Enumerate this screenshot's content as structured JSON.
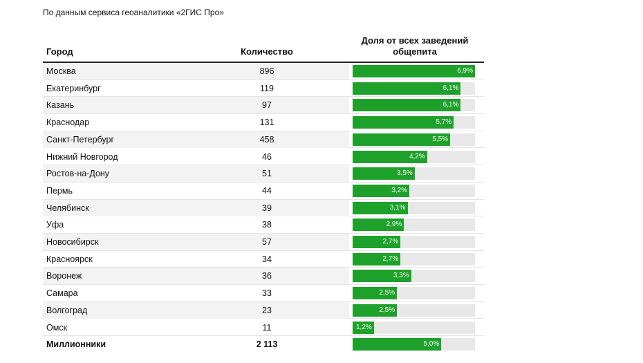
{
  "subtitle": "По данным сервиса геоаналитики «2ГИС Про»",
  "table": {
    "headers": [
      "Город",
      "Количество",
      "Доля от всех заведений общепита"
    ],
    "rows": [
      {
        "city": "Москва",
        "count": "896",
        "share": 6.9,
        "share_label": "6,9%"
      },
      {
        "city": "Екатеринбург",
        "count": "119",
        "share": 6.1,
        "share_label": "6,1%"
      },
      {
        "city": "Казань",
        "count": "97",
        "share": 6.1,
        "share_label": "6,1%"
      },
      {
        "city": "Краснодар",
        "count": "131",
        "share": 5.7,
        "share_label": "5,7%"
      },
      {
        "city": "Санкт-Петербург",
        "count": "458",
        "share": 5.5,
        "share_label": "5,5%"
      },
      {
        "city": "Нижний Новгород",
        "count": "46",
        "share": 4.2,
        "share_label": "4,2%"
      },
      {
        "city": "Ростов-на-Дону",
        "count": "51",
        "share": 3.5,
        "share_label": "3,5%"
      },
      {
        "city": "Пермь",
        "count": "44",
        "share": 3.2,
        "share_label": "3,2%"
      },
      {
        "city": "Челябинск",
        "count": "39",
        "share": 3.1,
        "share_label": "3,1%"
      },
      {
        "city": "Уфа",
        "count": "38",
        "share": 2.9,
        "share_label": "2,9%"
      },
      {
        "city": "Новосибирск",
        "count": "57",
        "share": 2.7,
        "share_label": "2,7%"
      },
      {
        "city": "Красноярск",
        "count": "34",
        "share": 2.7,
        "share_label": "2,7%"
      },
      {
        "city": "Воронеж",
        "count": "36",
        "share": 3.3,
        "share_label": "3,3%"
      },
      {
        "city": "Самара",
        "count": "33",
        "share": 2.5,
        "share_label": "2,5%"
      },
      {
        "city": "Волгоград",
        "count": "23",
        "share": 2.5,
        "share_label": "2,5%"
      },
      {
        "city": "Омск",
        "count": "11",
        "share": 1.2,
        "share_label": "1,2%"
      },
      {
        "city": "Миллионники",
        "count": "2 113",
        "share": 5.0,
        "share_label": "5,0%"
      }
    ]
  }
}
